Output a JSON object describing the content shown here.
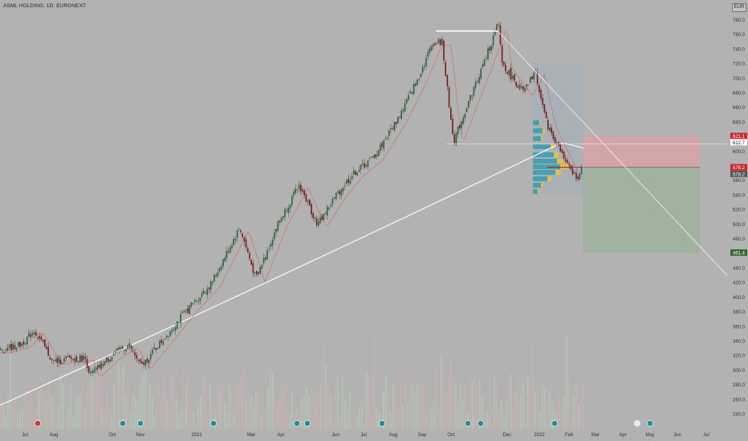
{
  "header": {
    "symbol_label": "ASML HOLDING, 1D, EURONEXT",
    "currency": "EUR"
  },
  "colors": {
    "background": "#b2b2b2",
    "up_candle": "#2e5e3e",
    "down_candle": "#7a1818",
    "sma_long": "#f5f5f5",
    "sma_short": "#c86a6a",
    "stop_zone": "#d9a3a6",
    "target_zone": "#9cb29c",
    "volume_profile_up": "#3a9cae",
    "volume_profile_down": "#e6c23a",
    "volume_up": "#b6c4b4",
    "volume_down": "#c6b0b0"
  },
  "chart_data": {
    "type": "candlestick",
    "interval": "1D",
    "ylim": [
      230,
      790
    ],
    "y_ticks": [
      240,
      260,
      280,
      300,
      320,
      340,
      360,
      380,
      400,
      420,
      440,
      460,
      480,
      500,
      520,
      540,
      560,
      580,
      600,
      620,
      640,
      660,
      680,
      700,
      720,
      740,
      760,
      780
    ],
    "x_ticks": [
      "Jul",
      "Aug",
      "Oct",
      "Nov",
      "2021",
      "Mar",
      "Apr",
      "Jun",
      "Jul",
      "Aug",
      "Sep",
      "Oct",
      "Dec",
      "2022",
      "Feb",
      "Mar",
      "Apr",
      "May",
      "Jun",
      "Jul"
    ],
    "price_path": [
      [
        0,
        328
      ],
      [
        25,
        335
      ],
      [
        42,
        355
      ],
      [
        65,
        312
      ],
      [
        105,
        318
      ],
      [
        112,
        294
      ],
      [
        140,
        322
      ],
      [
        160,
        335
      ],
      [
        175,
        305
      ],
      [
        230,
        380
      ],
      [
        262,
        418
      ],
      [
        298,
        496
      ],
      [
        318,
        425
      ],
      [
        345,
        500
      ],
      [
        372,
        554
      ],
      [
        395,
        500
      ],
      [
        418,
        540
      ],
      [
        440,
        570
      ],
      [
        465,
        592
      ],
      [
        495,
        645
      ],
      [
        520,
        700
      ],
      [
        538,
        748
      ],
      [
        550,
        750
      ],
      [
        560,
        650
      ],
      [
        565,
        615
      ],
      [
        582,
        665
      ],
      [
        598,
        710
      ],
      [
        612,
        750
      ],
      [
        620,
        775
      ],
      [
        625,
        720
      ],
      [
        638,
        700
      ],
      [
        652,
        680
      ],
      [
        666,
        710
      ],
      [
        680,
        640
      ],
      [
        695,
        605
      ],
      [
        702,
        590
      ],
      [
        712,
        570
      ],
      [
        720,
        565
      ],
      [
        726,
        578
      ]
    ],
    "annotations": {
      "resistance_level": 765,
      "neckline_level": 610,
      "entry_price": 578.2,
      "stop_price": 621.1,
      "target_price": 461.4,
      "last_price": 578.2,
      "sma_value": 612.7
    },
    "price_labels": {
      "stop": "621.1",
      "sma": "612.7",
      "entry": "578.2",
      "last": "578.2",
      "target": "461.4"
    },
    "event_markers": [
      "dividend",
      "earnings",
      "other",
      "earnings",
      "earnings",
      "other",
      "earnings",
      "earnings",
      "other",
      "earnings",
      "split",
      "other"
    ]
  }
}
